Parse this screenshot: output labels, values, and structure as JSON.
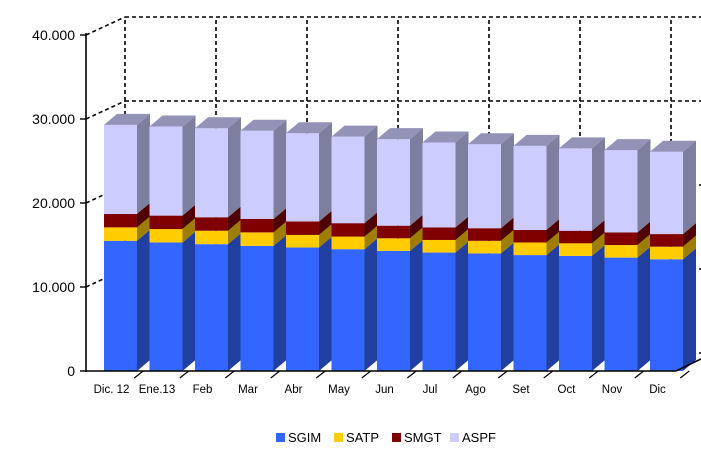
{
  "chart_data": {
    "type": "bar",
    "stacked": true,
    "three_d": true,
    "categories": [
      "Dic. 12",
      "Ene.13",
      "Feb",
      "Mar",
      "Abr",
      "May",
      "Jun",
      "Jul",
      "Ago",
      "Set",
      "Oct",
      "Nov",
      "Dic"
    ],
    "series": [
      {
        "name": "SGIM",
        "color": "#3366ff",
        "values": [
          15500,
          15300,
          15100,
          14900,
          14700,
          14500,
          14300,
          14100,
          14000,
          13800,
          13700,
          13500,
          13300
        ]
      },
      {
        "name": "SATP",
        "color": "#ffcc00",
        "values": [
          1600,
          1600,
          1600,
          1600,
          1500,
          1500,
          1500,
          1500,
          1500,
          1500,
          1500,
          1500,
          1500
        ]
      },
      {
        "name": "SMGT",
        "color": "#800000",
        "values": [
          1600,
          1600,
          1600,
          1600,
          1600,
          1600,
          1500,
          1500,
          1500,
          1500,
          1500,
          1500,
          1500
        ]
      },
      {
        "name": "ASPF",
        "color": "#ccccff",
        "values": [
          10600,
          10600,
          10600,
          10500,
          10500,
          10300,
          10300,
          10100,
          10000,
          10000,
          9800,
          9800,
          9800
        ]
      }
    ],
    "y_ticks": [
      "0",
      "10.000",
      "20.000",
      "30.000",
      "40.000"
    ],
    "ylim": [
      0,
      40000
    ],
    "grid": true,
    "legend_position": "bottom"
  }
}
